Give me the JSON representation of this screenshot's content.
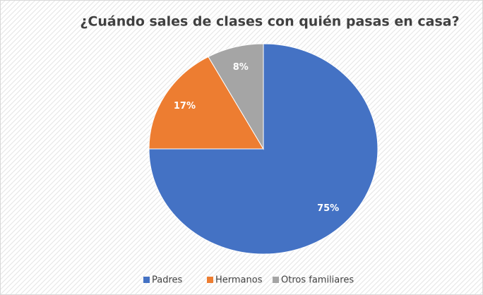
{
  "chart_data": {
    "type": "pie",
    "title": "¿Cuándo sales de clases con quién pasas en casa?",
    "categories": [
      "Padres",
      "Hermanos",
      "Otros familiares"
    ],
    "values": [
      75,
      17,
      8
    ],
    "value_labels": [
      "75%",
      "17%",
      "8%"
    ],
    "colors": [
      "#4472c4",
      "#ed7d31",
      "#a5a5a5"
    ],
    "legend": "bottom"
  }
}
